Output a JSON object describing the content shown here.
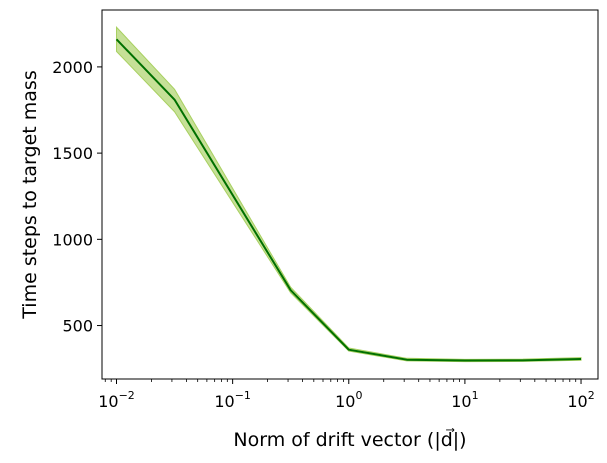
{
  "chart_data": {
    "type": "line",
    "xscale": "log",
    "xlabel": "Norm of drift vector (|d⃗|)",
    "ylabel": "Time steps to target mass",
    "xlim": [
      0.0075,
      140
    ],
    "ylim": [
      190,
      2330
    ],
    "x_ticks": [
      {
        "value": 0.01,
        "base": "10",
        "exp": "−2"
      },
      {
        "value": 0.1,
        "base": "10",
        "exp": "−1"
      },
      {
        "value": 1,
        "base": "10",
        "exp": "0"
      },
      {
        "value": 10,
        "base": "10",
        "exp": "1"
      },
      {
        "value": 100,
        "base": "10",
        "exp": "2"
      }
    ],
    "y_ticks": [
      500,
      1000,
      1500,
      2000
    ],
    "grid": false,
    "legend": "none",
    "series": [
      {
        "x": [
          0.01,
          0.0316,
          0.316,
          1,
          3.16,
          10,
          31.6,
          100
        ],
        "mean": [
          2160,
          1810,
          705,
          360,
          302,
          297,
          298,
          306
        ],
        "lower": [
          2090,
          1740,
          690,
          352,
          295,
          291,
          292,
          299
        ],
        "upper": [
          2230,
          1870,
          722,
          370,
          310,
          304,
          305,
          314
        ],
        "line_color": "#007000",
        "band_color": "#a8d060",
        "band_opacity": 0.65
      }
    ]
  }
}
